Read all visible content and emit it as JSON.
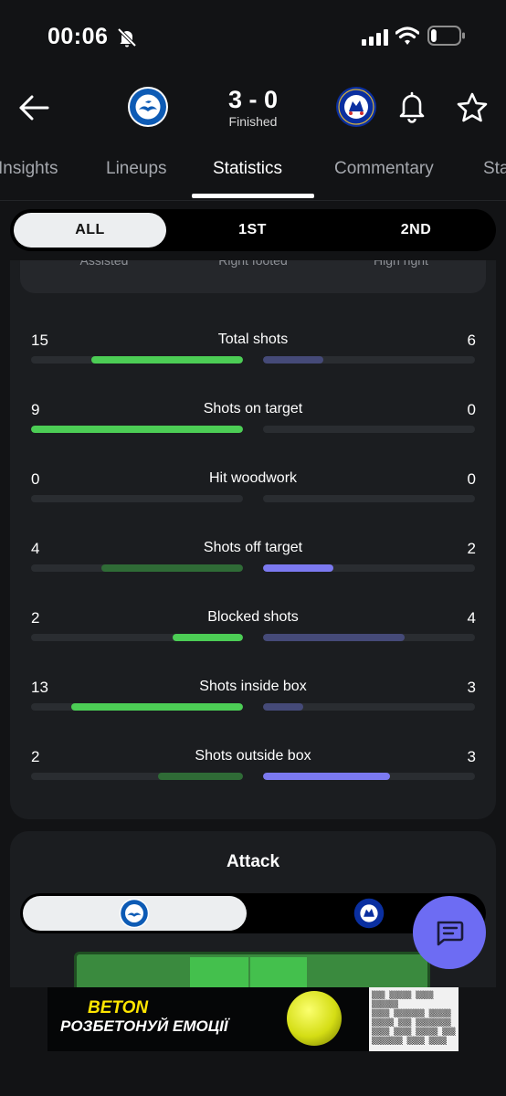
{
  "status_bar": {
    "time": "00:06",
    "icons": [
      "mute-bell-icon",
      "cellular-signal-icon",
      "wifi-icon",
      "battery-icon"
    ],
    "battery_level": 0.2
  },
  "match": {
    "home_team_crest": "brighton-crest",
    "away_team_crest": "chelsea-crest",
    "score": "3 - 0",
    "status": "Finished"
  },
  "tabs": [
    {
      "label": "Insights",
      "active": false
    },
    {
      "label": "Lineups",
      "active": false
    },
    {
      "label": "Statistics",
      "active": true
    },
    {
      "label": "Commentary",
      "active": false
    },
    {
      "label": "Sta",
      "active": false
    }
  ],
  "period_toggle": {
    "options": [
      "ALL",
      "1ST",
      "2ND"
    ],
    "selected": "ALL"
  },
  "partial_info_strip": {
    "cells": [
      "Assisted",
      "Right footed",
      "High right"
    ]
  },
  "shot_stats": [
    {
      "label": "Total shots",
      "home": "15",
      "away": "6",
      "home_ratio": 0.714,
      "away_ratio": 0.286,
      "home_color": "#4ccd55",
      "away_color": "#454a78"
    },
    {
      "label": "Shots on target",
      "home": "9",
      "away": "0",
      "home_ratio": 1.0,
      "away_ratio": 0.0,
      "home_color": "#4ccd55",
      "away_color": "#454a78"
    },
    {
      "label": "Hit woodwork",
      "home": "0",
      "away": "0",
      "home_ratio": 0.0,
      "away_ratio": 0.0,
      "home_color": "#4ccd55",
      "away_color": "#454a78"
    },
    {
      "label": "Shots off target",
      "home": "4",
      "away": "2",
      "home_ratio": 0.667,
      "away_ratio": 0.333,
      "home_color": "#2f6b36",
      "away_color": "#7b79f0"
    },
    {
      "label": "Blocked shots",
      "home": "2",
      "away": "4",
      "home_ratio": 0.333,
      "away_ratio": 0.667,
      "home_color": "#4ccd55",
      "away_color": "#454a78"
    },
    {
      "label": "Shots inside box",
      "home": "13",
      "away": "3",
      "home_ratio": 0.8125,
      "away_ratio": 0.1875,
      "home_color": "#4ccd55",
      "away_color": "#454a78"
    },
    {
      "label": "Shots outside box",
      "home": "2",
      "away": "3",
      "home_ratio": 0.4,
      "away_ratio": 0.6,
      "home_color": "#2f6b36",
      "away_color": "#7b79f0"
    }
  ],
  "attack": {
    "title": "Attack",
    "selected_team": "home"
  },
  "ad": {
    "brand": "BETON",
    "tagline": "РОЗБЕТОНУЙ ЕМОЦІЇ"
  },
  "colors": {
    "background": "#121315",
    "card": "#1b1d20",
    "home_accent": "#4ccd55",
    "away_accent": "#7b79f0",
    "fab": "#6d6cf3"
  }
}
